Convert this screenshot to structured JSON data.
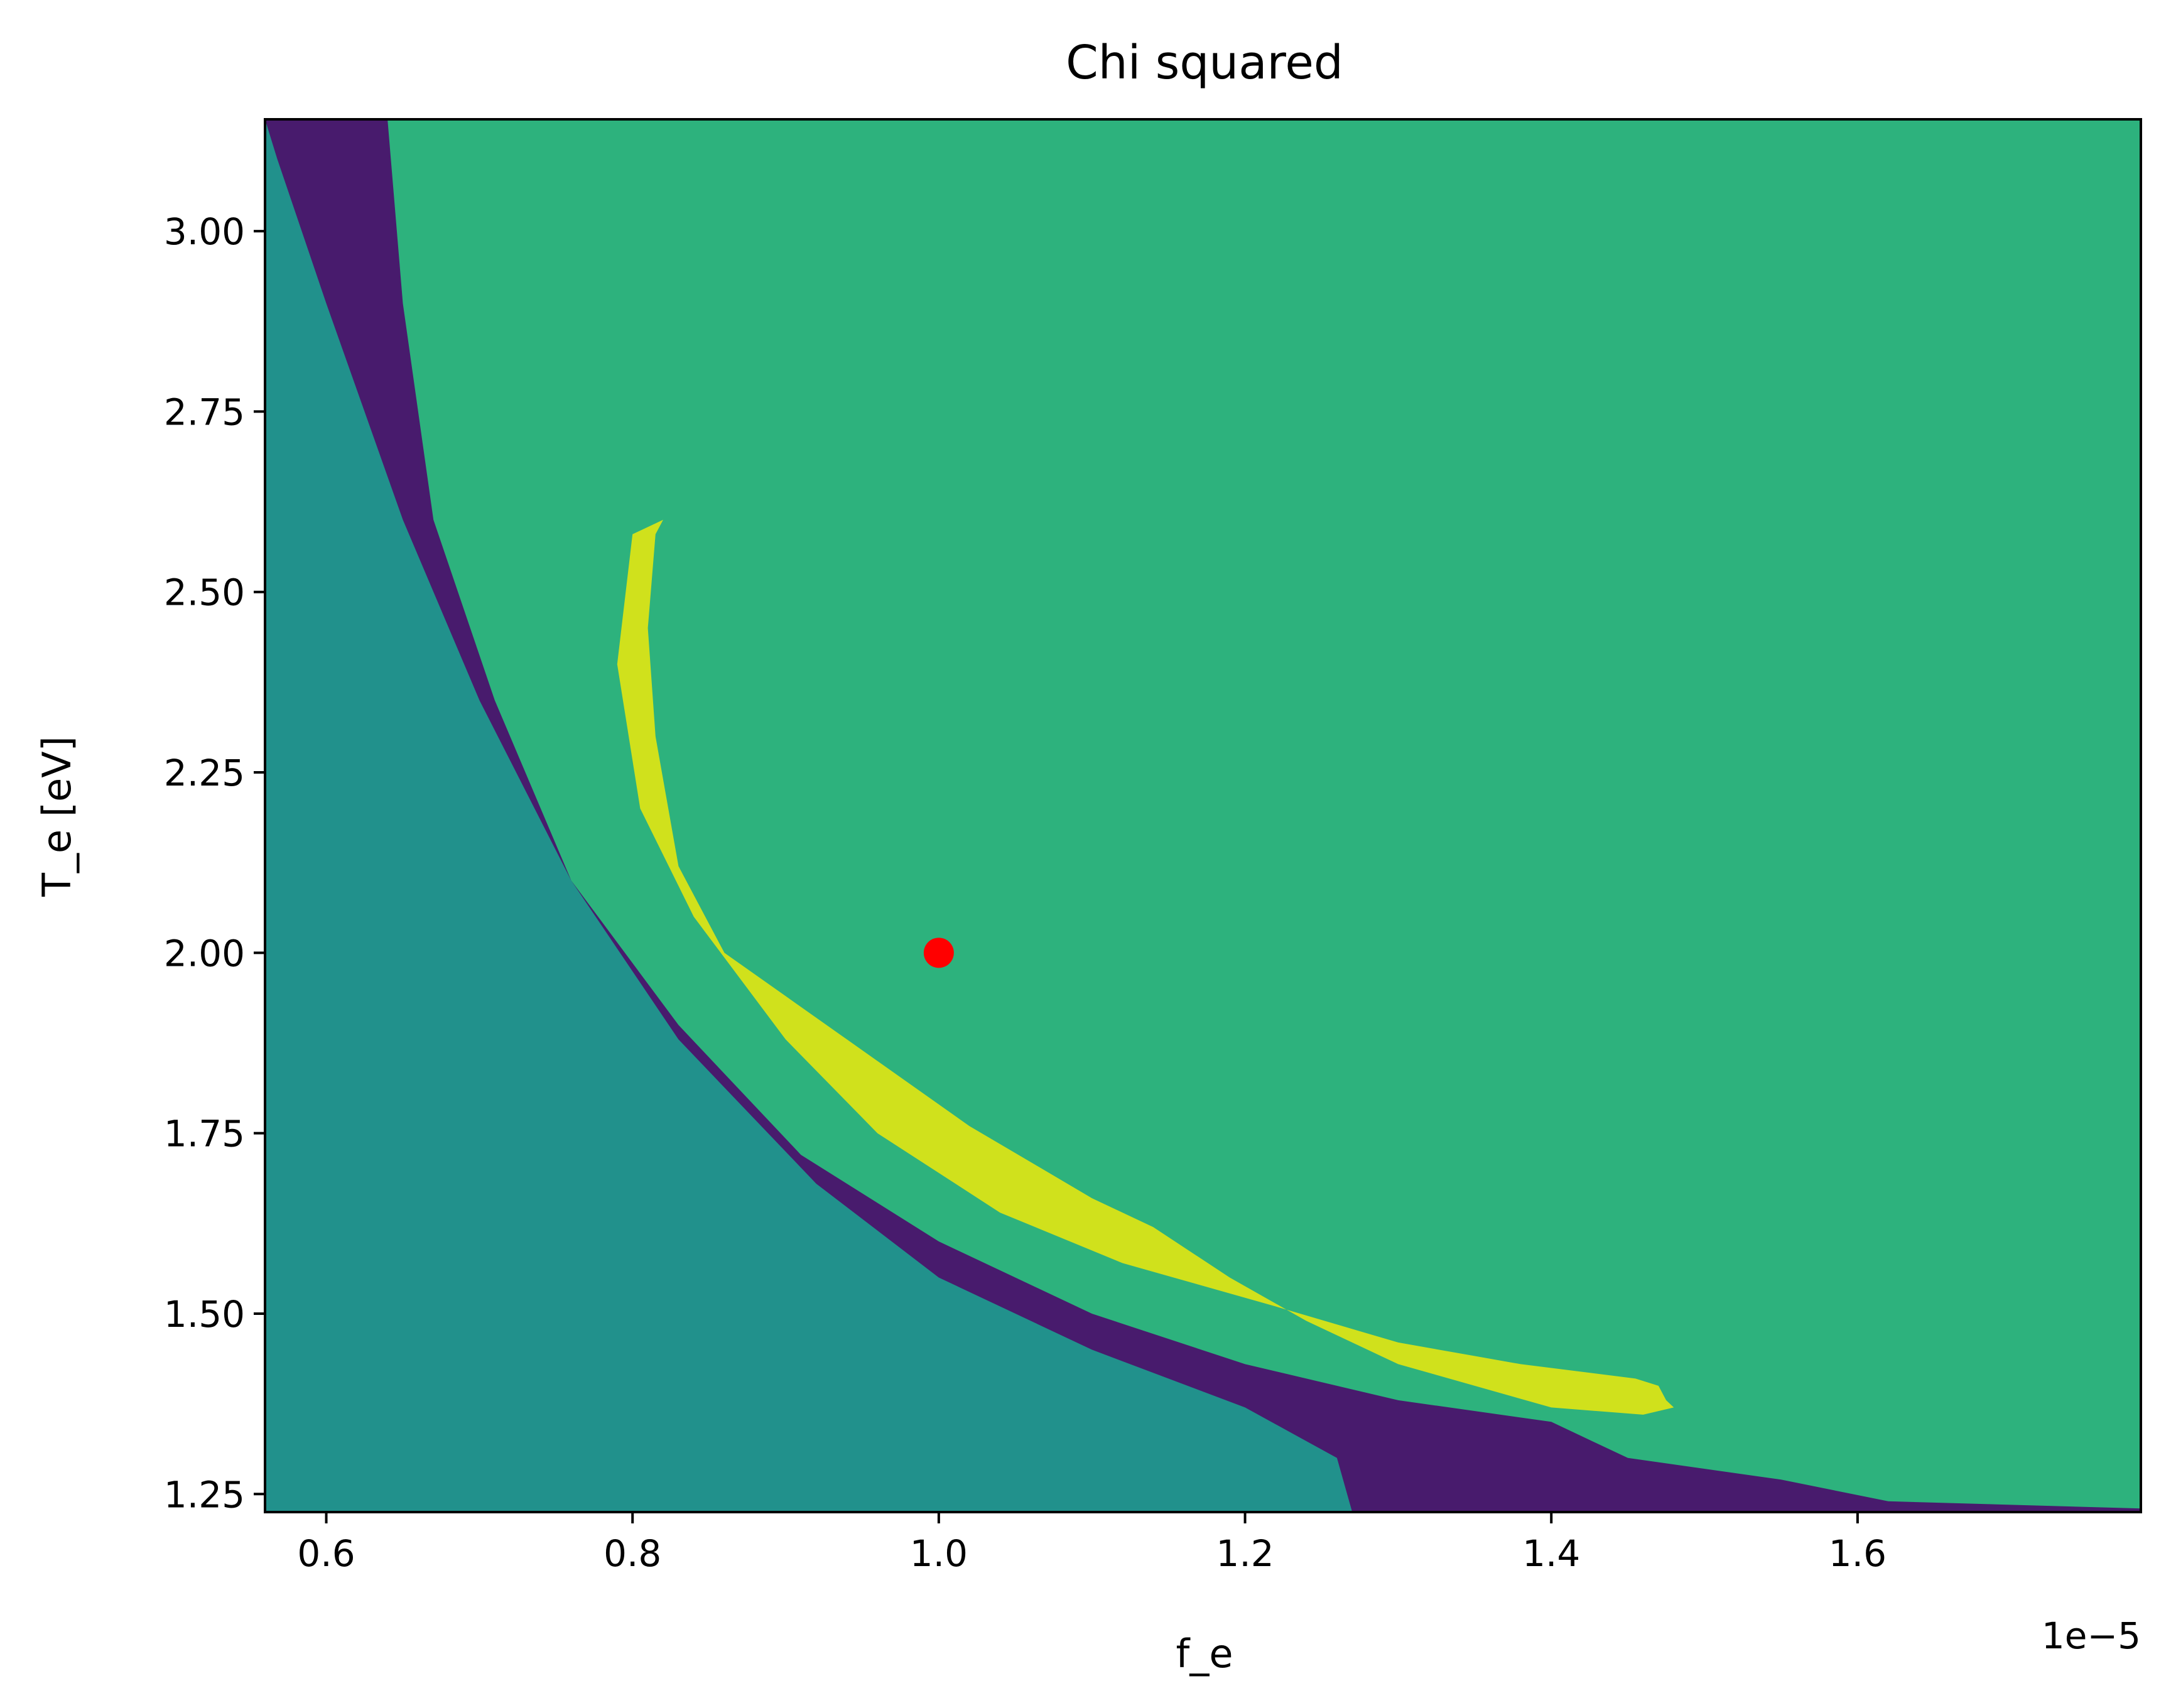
{
  "chart_data": {
    "type": "contourf",
    "title": "Chi squared",
    "xlabel": "f_e",
    "ylabel": "T_e [eV]",
    "x_offset_text": "1e−5",
    "x_scale_factor": 1e-05,
    "xlim": [
      0.56,
      1.785
    ],
    "ylim": [
      1.225,
      3.155
    ],
    "xticks": [
      0.6,
      0.8,
      1.0,
      1.2,
      1.4,
      1.6
    ],
    "xtick_labels": [
      "0.6",
      "0.8",
      "1.0",
      "1.2",
      "1.4",
      "1.6"
    ],
    "yticks": [
      1.25,
      1.5,
      1.75,
      2.0,
      2.25,
      2.5,
      2.75,
      3.0
    ],
    "ytick_labels": [
      "1.25",
      "1.50",
      "1.75",
      "2.00",
      "2.25",
      "2.50",
      "2.75",
      "3.00"
    ],
    "levels": [
      {
        "color": "#440154"
      },
      {
        "color": "#46327e"
      },
      {
        "color": "#365c8d"
      },
      {
        "color": "#277f8e"
      },
      {
        "color": "#1fa187"
      },
      {
        "color": "#4ac16d"
      },
      {
        "color": "#a0da39"
      }
    ],
    "level_colors_as_rendered": [
      "#481b6d",
      "#404387",
      "#2e6e8e",
      "#21918c",
      "#2db27d",
      "#73d056",
      "#d0e11c"
    ],
    "bands": [
      {
        "level": 0,
        "points": [
          [
            0.56,
            1.225
          ],
          [
            0.56,
            1.38
          ],
          [
            0.6,
            1.335
          ],
          [
            0.632,
            1.27
          ],
          [
            0.65,
            1.225
          ]
        ]
      },
      {
        "level": 0,
        "points": [
          [
            1.785,
            3.155
          ],
          [
            1.785,
            2.44
          ],
          [
            1.72,
            2.52
          ],
          [
            1.66,
            2.62
          ],
          [
            1.61,
            2.75
          ],
          [
            1.55,
            2.9
          ],
          [
            1.5,
            3.155
          ]
        ]
      },
      {
        "level": 1,
        "points": [
          [
            0.56,
            1.225
          ],
          [
            0.56,
            2.03
          ],
          [
            0.59,
            1.93
          ],
          [
            0.64,
            1.79
          ],
          [
            0.72,
            1.63
          ],
          [
            0.82,
            1.49
          ],
          [
            0.92,
            1.36
          ],
          [
            0.96,
            1.225
          ]
        ]
      },
      {
        "level": 1,
        "points": [
          [
            1.785,
            3.155
          ],
          [
            1.785,
            1.78
          ],
          [
            1.66,
            1.94
          ],
          [
            1.52,
            2.12
          ],
          [
            1.4,
            2.34
          ],
          [
            1.3,
            2.58
          ],
          [
            1.21,
            2.8
          ],
          [
            1.13,
            3.155
          ]
        ]
      },
      {
        "level": 2,
        "points": [
          [
            0.56,
            1.225
          ],
          [
            0.56,
            2.58
          ],
          [
            0.6,
            2.4
          ],
          [
            0.64,
            2.18
          ],
          [
            0.7,
            2.0
          ],
          [
            0.78,
            1.8
          ],
          [
            0.88,
            1.6
          ],
          [
            1.0,
            1.45
          ],
          [
            1.1,
            1.3
          ],
          [
            1.13,
            1.225
          ]
        ]
      },
      {
        "level": 2,
        "points": [
          [
            1.785,
            3.155
          ],
          [
            1.785,
            1.545
          ],
          [
            1.66,
            1.72
          ],
          [
            1.52,
            1.84
          ],
          [
            1.38,
            1.99
          ],
          [
            1.26,
            2.16
          ],
          [
            1.15,
            2.34
          ],
          [
            1.05,
            2.56
          ],
          [
            0.96,
            2.84
          ],
          [
            0.9,
            3.155
          ]
        ]
      },
      {
        "level": 3,
        "points": [
          [
            0.56,
            1.225
          ],
          [
            0.56,
            3.155
          ],
          [
            0.568,
            3.1
          ],
          [
            0.6,
            2.9
          ],
          [
            0.65,
            2.6
          ],
          [
            0.7,
            2.35
          ],
          [
            0.76,
            2.1
          ],
          [
            0.83,
            1.88
          ],
          [
            0.92,
            1.68
          ],
          [
            1.0,
            1.55
          ],
          [
            1.1,
            1.45
          ],
          [
            1.2,
            1.37
          ],
          [
            1.26,
            1.3
          ],
          [
            1.27,
            1.225
          ]
        ]
      },
      {
        "level": 3,
        "points": [
          [
            1.785,
            3.155
          ],
          [
            1.785,
            1.385
          ],
          [
            1.66,
            1.49
          ],
          [
            1.52,
            1.62
          ],
          [
            1.4,
            1.75
          ],
          [
            1.28,
            1.92
          ],
          [
            1.16,
            2.1
          ],
          [
            1.06,
            2.3
          ],
          [
            0.97,
            2.55
          ],
          [
            0.88,
            2.85
          ],
          [
            0.81,
            3.155
          ]
        ]
      },
      {
        "level": 4,
        "points": [
          [
            0.64,
            3.155
          ],
          [
            0.65,
            2.9
          ],
          [
            0.67,
            2.6
          ],
          [
            0.71,
            2.35
          ],
          [
            0.76,
            2.1
          ],
          [
            0.83,
            1.9
          ],
          [
            0.91,
            1.72
          ],
          [
            1.0,
            1.6
          ],
          [
            1.1,
            1.5
          ],
          [
            1.2,
            1.43
          ],
          [
            1.3,
            1.38
          ],
          [
            1.4,
            1.35
          ],
          [
            1.45,
            1.3
          ],
          [
            1.55,
            1.27
          ],
          [
            1.62,
            1.24
          ],
          [
            1.785,
            1.23
          ],
          [
            1.785,
            3.155
          ]
        ]
      }
    ],
    "inner_region": {
      "level": 5,
      "points": [
        [
          0.82,
          2.6
        ],
        [
          0.8,
          2.58
        ],
        [
          0.79,
          2.4
        ],
        [
          0.805,
          2.2
        ],
        [
          0.84,
          2.05
        ],
        [
          0.9,
          1.88
        ],
        [
          0.96,
          1.75
        ],
        [
          1.04,
          1.64
        ],
        [
          1.12,
          1.57
        ],
        [
          1.22,
          1.51
        ],
        [
          1.3,
          1.46
        ],
        [
          1.38,
          1.43
        ],
        [
          1.455,
          1.41
        ],
        [
          1.47,
          1.4
        ],
        [
          1.475,
          1.38
        ],
        [
          1.48,
          1.37
        ],
        [
          1.46,
          1.36
        ],
        [
          1.4,
          1.37
        ],
        [
          1.3,
          1.43
        ],
        [
          1.24,
          1.49
        ],
        [
          1.19,
          1.55
        ],
        [
          1.14,
          1.62
        ],
        [
          1.1,
          1.66
        ],
        [
          1.06,
          1.71
        ],
        [
          1.02,
          1.76
        ],
        [
          0.98,
          1.82
        ],
        [
          0.94,
          1.88
        ],
        [
          0.9,
          1.94
        ],
        [
          0.86,
          2.0
        ],
        [
          0.83,
          2.12
        ],
        [
          0.815,
          2.3
        ],
        [
          0.81,
          2.45
        ],
        [
          0.815,
          2.58
        ]
      ]
    },
    "marker": {
      "x": 1.0,
      "y": 2.0,
      "color": "#ff0000"
    }
  }
}
